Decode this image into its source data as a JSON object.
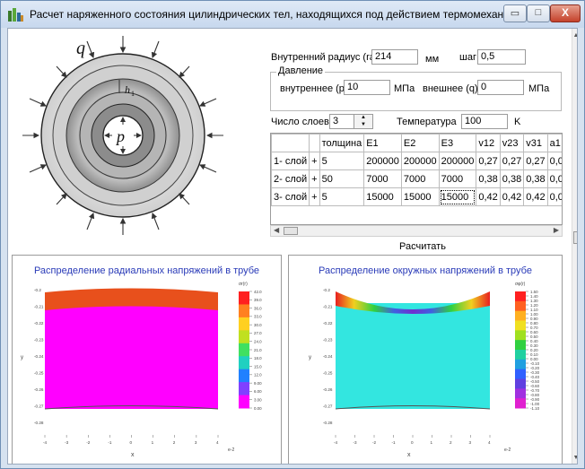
{
  "window": {
    "title": "Расчет наряженного состояния цилиндрических тел, находящихся под действием термомеханиче...",
    "min_glyph": "▭",
    "max_glyph": "□",
    "close_glyph": "X"
  },
  "diagram": {
    "q_label": "q",
    "p_label": "p",
    "h_label": "h",
    "h_sub": "1"
  },
  "params": {
    "inner_radius_label": "Внутренний радиус (ra)",
    "inner_radius_value": "214",
    "inner_radius_unit": "мм",
    "step_label": "шаг",
    "step_value": "0,5",
    "pressure_group_title": "Давление",
    "inner_pressure_label": "внутреннее (p)",
    "inner_pressure_value": "10",
    "inner_pressure_unit": "МПа",
    "outer_pressure_label": "внешнее (q)",
    "outer_pressure_value": "0",
    "outer_pressure_unit": "МПа",
    "layers_label": "Число слоев:",
    "layers_value": "3",
    "temperature_label": "Температура",
    "temperature_value": "100",
    "temperature_unit": "K"
  },
  "layers_table": {
    "headers": [
      "толщина",
      "E1",
      "E2",
      "E3",
      "v12",
      "v23",
      "v31",
      "a1"
    ],
    "rows": [
      {
        "label": "1- слой",
        "plus": "+",
        "cells": [
          "5",
          "200000",
          "200000",
          "200000",
          "0,27",
          "0,27",
          "0,27",
          "0,0"
        ]
      },
      {
        "label": "2- слой",
        "plus": "+",
        "cells": [
          "50",
          "7000",
          "7000",
          "7000",
          "0,38",
          "0,38",
          "0,38",
          "0,0"
        ]
      },
      {
        "label": "3- слой",
        "plus": "+",
        "cells": [
          "5",
          "15000",
          "15000",
          "15000",
          "0,42",
          "0,42",
          "0,42",
          "0,0"
        ]
      }
    ]
  },
  "calculate_button": "Расчитать",
  "plots": [
    {
      "title": "Распределение радиальных напряжений в трубе",
      "colorbar_title": "σr(r)",
      "colorbar_labels": [
        "42.0",
        "39.0",
        "36.0",
        "33.0",
        "30.0",
        "27.0",
        "24.0",
        "21.0",
        "18.0",
        "15.0",
        "12.0",
        "9.00",
        "6.00",
        "3.00",
        "0.00"
      ],
      "y_ticks": [
        "-0.2",
        "-0.21",
        "-0.22",
        "-0.23",
        "-0.24",
        "-0.25",
        "-0.26",
        "-0.27",
        "-0.28"
      ],
      "x_ticks": [
        "-4",
        "-3",
        "-2",
        "-1",
        "0",
        "1",
        "2",
        "3",
        "4"
      ],
      "x_label": "x",
      "y_label": "y",
      "x_scale": "e-2",
      "colors": {
        "band": "#e8501c",
        "body": "#ff00ff"
      }
    },
    {
      "title": "Распределение окружных напряжений в трубе",
      "colorbar_title": "σφ(r)",
      "colorbar_labels": [
        "1.50",
        "1.40",
        "1.30",
        "1.20",
        "1.10",
        "1.00",
        "0.90",
        "0.80",
        "0.70",
        "0.60",
        "0.50",
        "0.40",
        "0.30",
        "0.20",
        "0.10",
        "0.00",
        "-0.10",
        "-0.20",
        "-0.30",
        "-0.40",
        "-0.50",
        "-0.60",
        "-0.70",
        "-0.80",
        "-0.90",
        "-1.00",
        "-1.10"
      ],
      "y_ticks": [
        "-0.2",
        "-0.21",
        "-0.22",
        "-0.23",
        "-0.24",
        "-0.25",
        "-0.26",
        "-0.27",
        "-0.28"
      ],
      "x_ticks": [
        "-4",
        "-3",
        "-2",
        "-1",
        "0",
        "1",
        "2",
        "3",
        "4"
      ],
      "x_label": "x",
      "y_label": "y",
      "x_scale": "e-2",
      "colors": {
        "body": "#33e6e0"
      }
    }
  ]
}
